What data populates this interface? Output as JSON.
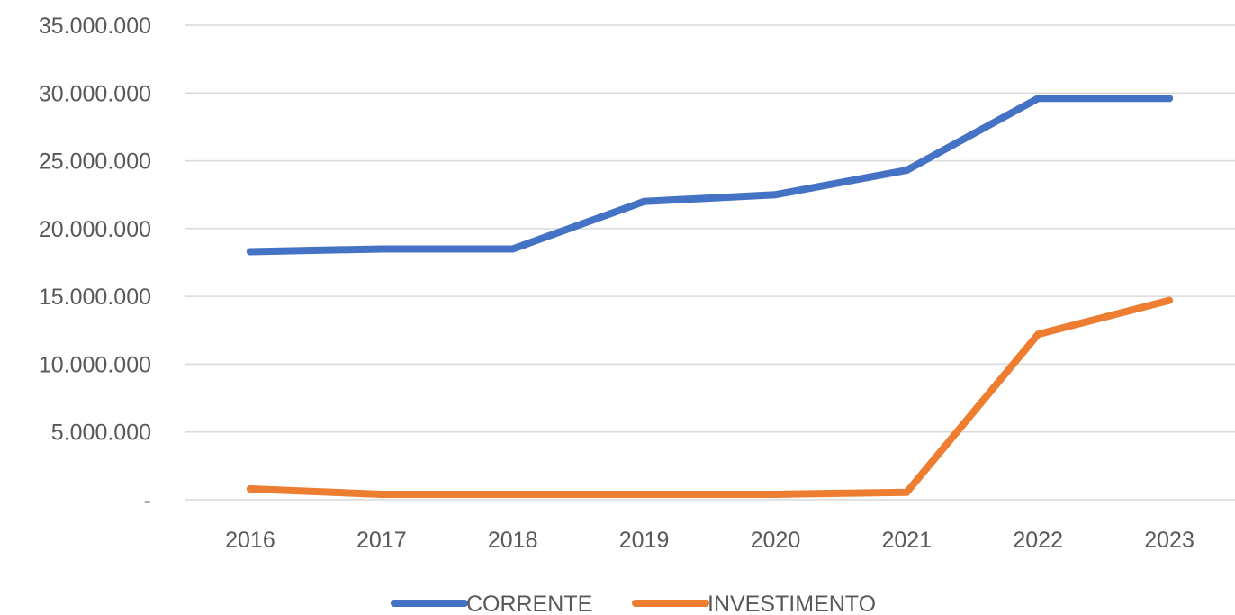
{
  "chart_data": {
    "type": "line",
    "title": "",
    "xlabel": "",
    "ylabel": "",
    "categories": [
      "2016",
      "2017",
      "2018",
      "2019",
      "2020",
      "2021",
      "2022",
      "2023"
    ],
    "ylim": [
      0,
      35000000
    ],
    "yticks": [
      0,
      5000000,
      10000000,
      15000000,
      20000000,
      25000000,
      30000000,
      35000000
    ],
    "ytick_labels": [
      "-",
      "5.000.000",
      "10.000.000",
      "15.000.000",
      "20.000.000",
      "25.000.000",
      "30.000.000",
      "35.000.000"
    ],
    "grid": true,
    "legend_position": "bottom",
    "series": [
      {
        "name": "CORRENTE",
        "color": "#4472C4",
        "values": [
          18300000,
          18500000,
          18500000,
          22000000,
          22500000,
          24300000,
          29600000,
          29600000
        ]
      },
      {
        "name": "INVESTIMENTO",
        "color": "#ED7D31",
        "values": [
          800000,
          400000,
          400000,
          400000,
          400000,
          550000,
          12200000,
          14700000
        ]
      }
    ]
  }
}
